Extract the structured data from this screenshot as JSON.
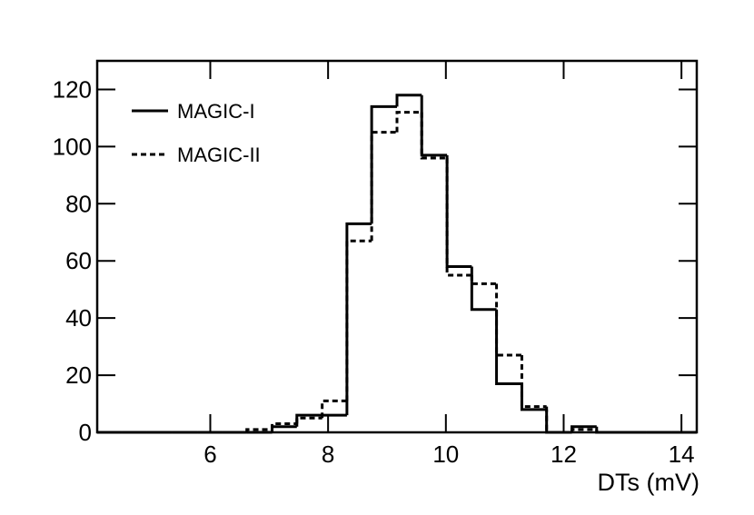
{
  "chart_data": {
    "type": "histogram",
    "xlabel": "DTs (mV)",
    "bins": [
      4.08,
      4.5,
      4.92,
      5.35,
      5.78,
      6.2,
      6.62,
      7.05,
      7.47,
      7.9,
      8.32,
      8.74,
      9.17,
      9.59,
      10.02,
      10.44,
      10.86,
      11.29,
      11.71,
      12.14,
      12.56,
      12.98,
      13.41,
      13.83,
      14.26
    ],
    "series": [
      {
        "name": "MAGIC-I",
        "color": "#000000",
        "dash": "solid",
        "values": [
          0,
          0,
          0,
          0,
          0,
          0,
          0,
          2,
          6,
          6,
          73,
          114,
          118,
          97,
          58,
          43,
          17,
          8,
          0,
          2,
          0,
          0,
          0,
          0
        ]
      },
      {
        "name": "MAGIC-II",
        "color": "#000000",
        "dash": "dashed",
        "values": [
          0,
          0,
          0,
          0,
          0,
          0,
          1,
          3,
          5,
          11,
          67,
          105,
          112,
          96,
          55,
          52,
          27,
          9,
          0,
          1,
          0,
          0,
          0,
          0
        ]
      }
    ],
    "xlim": [
      4.08,
      14.26
    ],
    "xticks": [
      6,
      8,
      10,
      12,
      14
    ],
    "ylim": [
      0,
      130
    ],
    "yticks": [
      0,
      20,
      40,
      60,
      80,
      100,
      120
    ],
    "legend": "upper left"
  }
}
